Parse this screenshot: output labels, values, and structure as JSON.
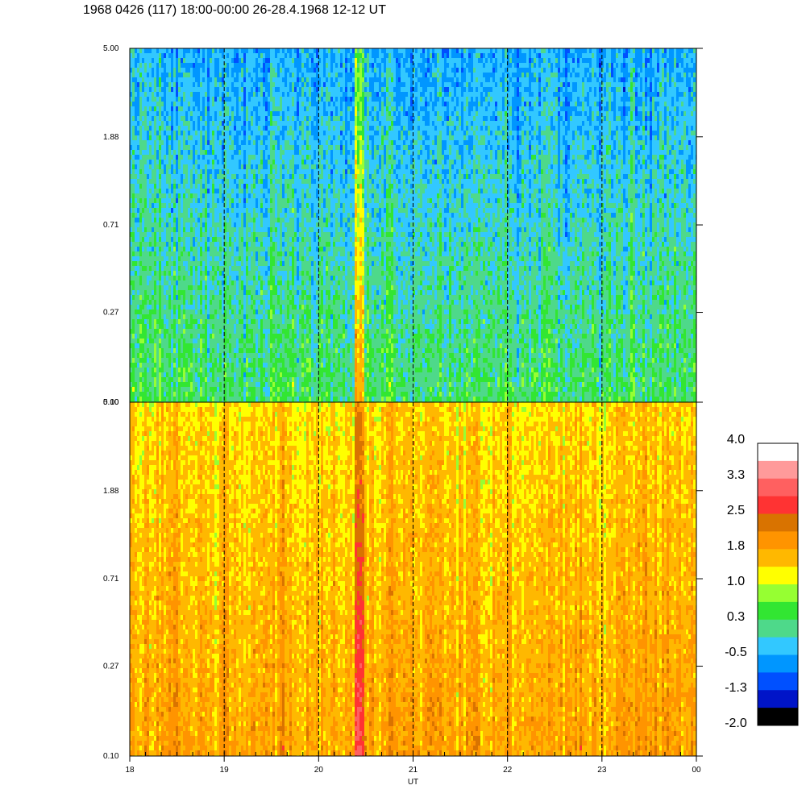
{
  "title": "1968 0426 (117) 18:00-00:00 26-28.4.1968  12-12 UT",
  "chart_data": {
    "type": "heatmap",
    "xlabel": "UT",
    "x_ticks": [
      "18",
      "19",
      "20",
      "21",
      "22",
      "23",
      "00"
    ],
    "x_range_hours": [
      18,
      24
    ],
    "panels": [
      {
        "name": "",
        "y_ticks": [
          "5.00",
          "1.88",
          "0.71",
          "0.27",
          "0.10"
        ],
        "y_range": [
          0.1,
          5.0
        ],
        "y_scale": "log",
        "dominant_level_low": 0.3,
        "dominant_level_high": -0.5
      },
      {
        "name": "",
        "y_ticks": [
          "5.00",
          "1.88",
          "0.71",
          "0.27",
          "0.10"
        ],
        "y_range": [
          0.1,
          5.0
        ],
        "y_scale": "log",
        "dominant_level_low": 1.8,
        "dominant_level_high": 1.4
      }
    ],
    "dashed_gridlines_x": [
      19,
      20,
      21,
      22,
      23
    ],
    "colorbar": {
      "tick_labels": [
        "4.0",
        "3.3",
        "2.5",
        "1.8",
        "1.0",
        "0.3",
        "-0.5",
        "-1.3",
        "-2.0"
      ],
      "range": [
        -2.0,
        4.0
      ],
      "colors": [
        "#ffffff",
        "#ff9a9a",
        "#ff6060",
        "#ff3333",
        "#d97300",
        "#ff9400",
        "#ffb800",
        "#ffff00",
        "#96ff32",
        "#32e632",
        "#4ed98a",
        "#32c8ff",
        "#0096ff",
        "#0050ff",
        "#0014c8",
        "#000000"
      ]
    }
  }
}
